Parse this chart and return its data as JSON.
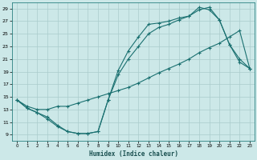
{
  "xlabel": "Humidex (Indice chaleur)",
  "bg_color": "#cce8e8",
  "grid_color": "#aacccc",
  "line_color": "#1a7070",
  "spine_color": "#2a8080",
  "xlim": [
    -0.5,
    23.5
  ],
  "ylim": [
    8.0,
    30.0
  ],
  "xticks": [
    0,
    1,
    2,
    3,
    4,
    5,
    6,
    7,
    8,
    9,
    10,
    11,
    12,
    13,
    14,
    15,
    16,
    17,
    18,
    19,
    20,
    21,
    22,
    23
  ],
  "yticks": [
    9,
    11,
    13,
    15,
    17,
    19,
    21,
    23,
    25,
    27,
    29
  ],
  "line1_x": [
    0,
    1,
    2,
    3,
    4,
    5,
    6,
    7,
    8,
    9,
    10,
    11,
    12,
    13,
    14,
    15,
    16,
    17,
    18,
    19,
    20,
    21,
    22,
    23
  ],
  "line1_y": [
    14.5,
    13.2,
    12.5,
    11.5,
    10.3,
    9.5,
    9.2,
    9.2,
    9.5,
    14.5,
    19.2,
    22.3,
    24.5,
    26.5,
    26.7,
    27.0,
    27.5,
    27.8,
    29.2,
    28.8,
    27.2,
    23.3,
    20.5,
    19.5
  ],
  "line2_x": [
    0,
    1,
    2,
    3,
    4,
    5,
    6,
    7,
    8,
    9,
    10,
    11,
    12,
    13,
    14,
    15,
    16,
    17,
    18,
    19,
    20,
    21,
    22,
    23
  ],
  "line2_y": [
    14.5,
    13.5,
    13.0,
    13.0,
    13.5,
    13.5,
    14.0,
    14.5,
    15.0,
    15.5,
    16.0,
    16.5,
    17.2,
    18.0,
    18.8,
    19.5,
    20.2,
    21.0,
    22.0,
    22.8,
    23.5,
    24.5,
    25.5,
    19.5
  ],
  "line3_x": [
    0,
    1,
    2,
    3,
    4,
    5,
    6,
    7,
    8,
    9,
    10,
    11,
    12,
    13,
    14,
    15,
    16,
    17,
    18,
    19,
    20,
    21,
    22,
    23
  ],
  "line3_y": [
    14.5,
    13.2,
    12.5,
    11.8,
    10.5,
    9.5,
    9.2,
    9.2,
    9.5,
    14.5,
    18.5,
    21.0,
    23.0,
    25.0,
    26.0,
    26.5,
    27.2,
    27.8,
    28.8,
    29.2,
    27.2,
    23.3,
    21.0,
    19.5
  ]
}
